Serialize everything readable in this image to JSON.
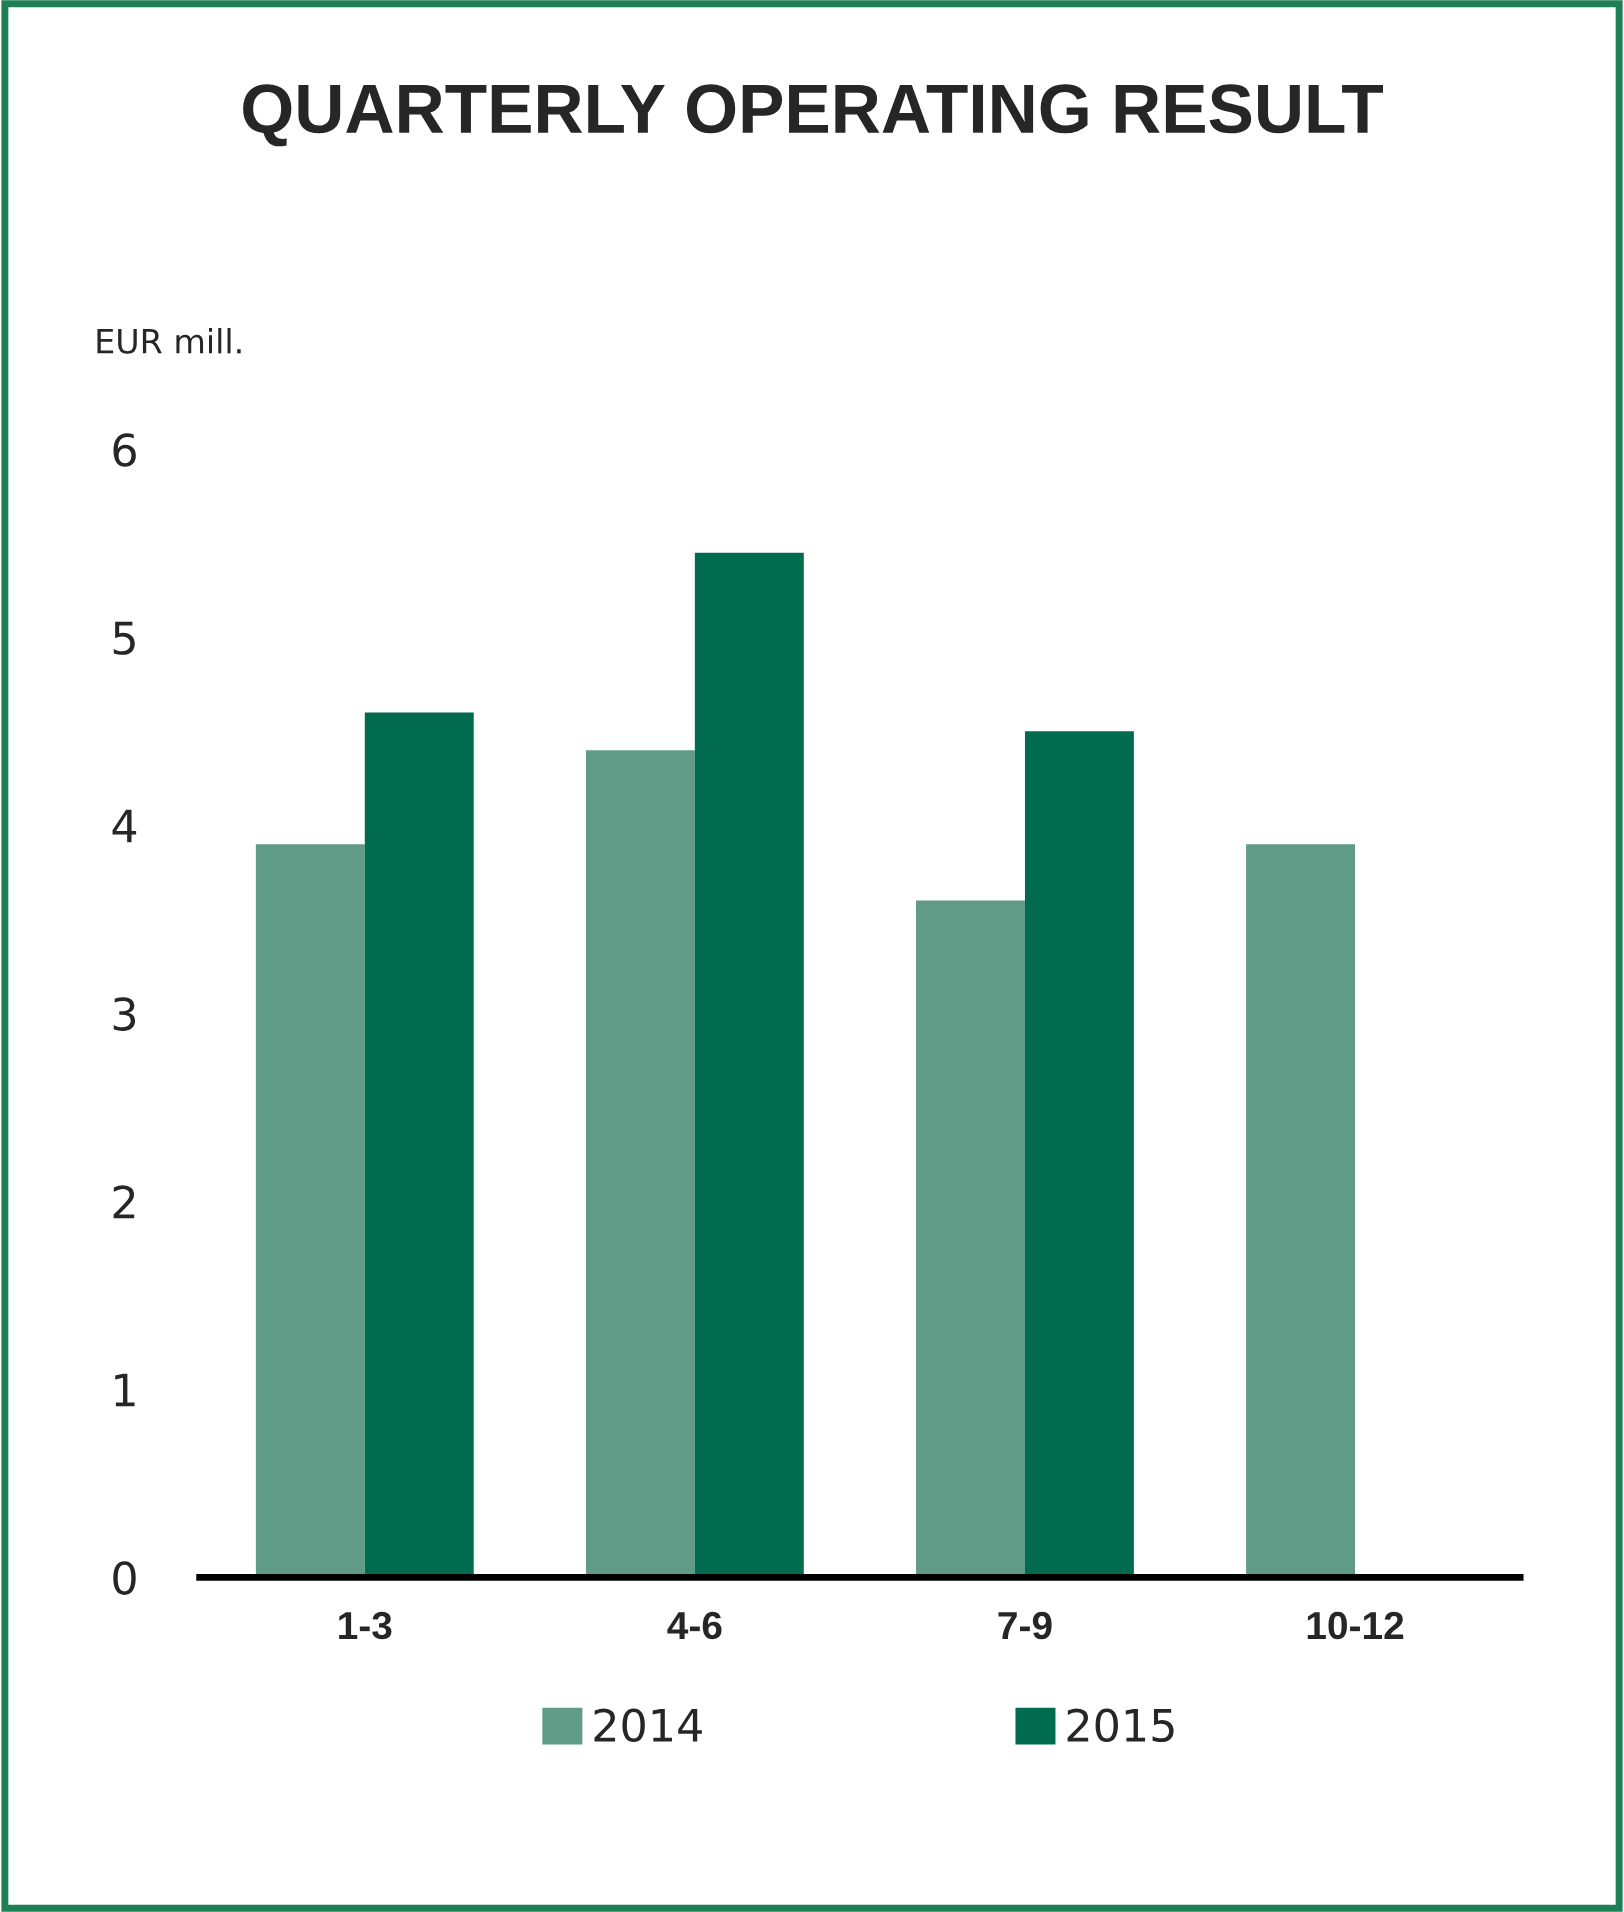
{
  "chart_data": {
    "type": "bar",
    "title": "QUARTERLY OPERATING RESULT",
    "ylabel": "EUR mill.",
    "categories": [
      "1-3",
      "4-6",
      "7-9",
      "10-12"
    ],
    "series": [
      {
        "name": "2014",
        "color": "#5f9b86",
        "values": [
          3.9,
          4.4,
          3.6,
          3.9
        ]
      },
      {
        "name": "2015",
        "color": "#006b4e",
        "values": [
          4.6,
          5.45,
          4.5,
          null
        ]
      }
    ],
    "ylim": [
      0,
      6
    ],
    "yticks": [
      0,
      1,
      2,
      3,
      4,
      5,
      6
    ],
    "grid": false,
    "legend": "bottom"
  }
}
